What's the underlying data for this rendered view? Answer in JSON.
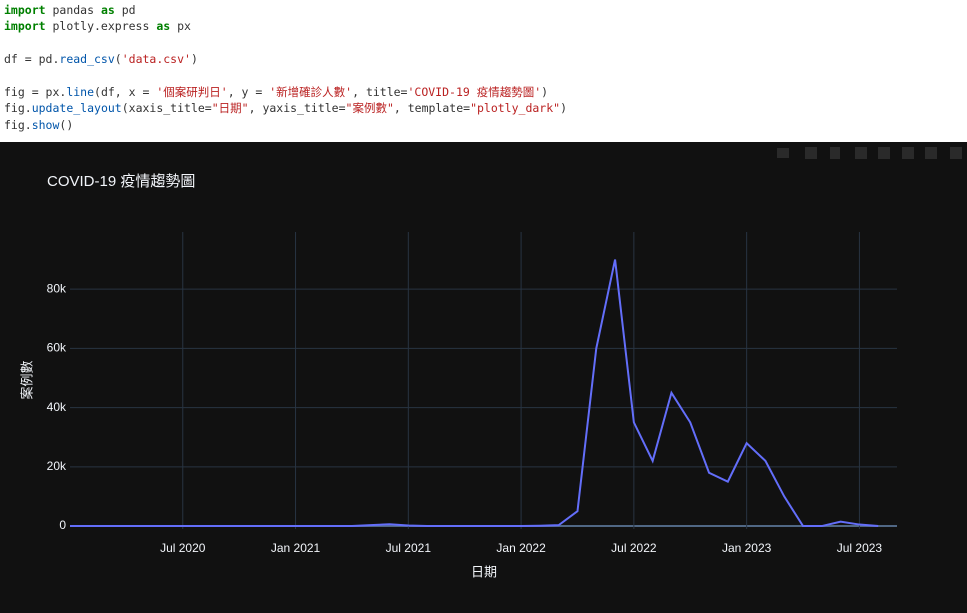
{
  "code": [
    "import pandas as pd",
    "import plotly.express as px",
    "df = pd.read_csv('data.csv')",
    "fig = px.line(df, x = '個案研判日', y = '新增確診人數', title='COVID-19 疫情趨勢圖')",
    "fig.update_layout(xaxis_title=\"日期\", yaxis_title=\"案例數\", template=\"plotly_dark\")",
    "fig.show()"
  ],
  "chart_data": {
    "type": "line",
    "title": "COVID-19 疫情趨勢圖",
    "x_label": "日期",
    "y_label": "案例數",
    "x": [
      "2020-01",
      "2020-02",
      "2020-03",
      "2020-04",
      "2020-05",
      "2020-06",
      "2020-07",
      "2020-08",
      "2020-09",
      "2020-10",
      "2020-11",
      "2020-12",
      "2021-01",
      "2021-02",
      "2021-03",
      "2021-04",
      "2021-05",
      "2021-06",
      "2021-07",
      "2021-08",
      "2021-09",
      "2021-10",
      "2021-11",
      "2021-12",
      "2022-01",
      "2022-02",
      "2022-03",
      "2022-04",
      "2022-05",
      "2022-06",
      "2022-07",
      "2022-08",
      "2022-09",
      "2022-10",
      "2022-11",
      "2022-12",
      "2023-01",
      "2023-02",
      "2023-03",
      "2023-04",
      "2023-05",
      "2023-06",
      "2023-07",
      "2023-08"
    ],
    "series": [
      {
        "name": "新增確診人數",
        "color": "#636efa",
        "values": [
          0,
          0,
          0,
          0,
          0,
          0,
          0,
          0,
          0,
          0,
          0,
          0,
          0,
          0,
          0,
          0,
          300,
          600,
          200,
          0,
          0,
          0,
          0,
          0,
          0,
          100,
          300,
          5000,
          60000,
          90000,
          35000,
          22000,
          45000,
          35000,
          18000,
          15000,
          28000,
          22000,
          10000,
          0,
          0,
          1500,
          500,
          0
        ]
      }
    ],
    "xlim": [
      "2020-01",
      "2023-09"
    ],
    "xticks": [
      {
        "value": "2020-07",
        "label": "Jul 2020"
      },
      {
        "value": "2021-01",
        "label": "Jan 2021"
      },
      {
        "value": "2021-07",
        "label": "Jul 2021"
      },
      {
        "value": "2022-01",
        "label": "Jan 2022"
      },
      {
        "value": "2022-07",
        "label": "Jul 2022"
      },
      {
        "value": "2023-01",
        "label": "Jan 2023"
      },
      {
        "value": "2023-07",
        "label": "Jul 2023"
      }
    ],
    "ylim": [
      -1000,
      99300
    ],
    "yticks": [
      0,
      {
        "value": 20000,
        "label": "20k"
      },
      {
        "value": 40000,
        "label": "40k"
      },
      {
        "value": 60000,
        "label": "60k"
      },
      {
        "value": 80000,
        "label": "80k"
      }
    ],
    "grid": true
  }
}
